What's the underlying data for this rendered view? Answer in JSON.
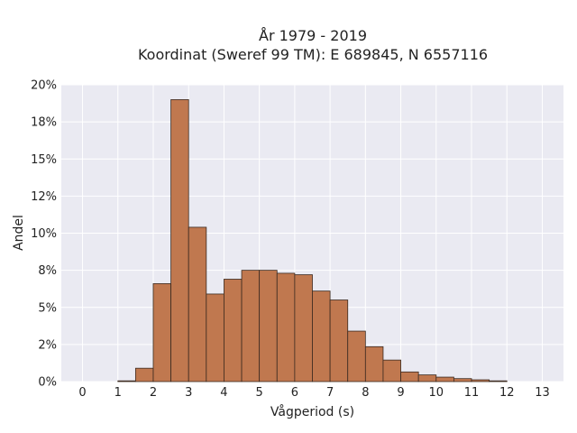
{
  "chart_data": {
    "type": "bar",
    "title_line1": "År 1979 - 2019",
    "title_line2": "Koordinat (Sweref 99 TM): E 689845, N 6557116",
    "xlabel": "Vågperiod (s)",
    "ylabel": "Andel",
    "xlim": [
      -0.6,
      13.6
    ],
    "ylim": [
      0,
      20
    ],
    "x_ticks": [
      0,
      1,
      2,
      3,
      4,
      5,
      6,
      7,
      8,
      9,
      10,
      11,
      12,
      13
    ],
    "y_ticks": [
      {
        "value": 0,
        "label": "0%"
      },
      {
        "value": 2.5,
        "label": "2%"
      },
      {
        "value": 5,
        "label": "5%"
      },
      {
        "value": 7.5,
        "label": "8%"
      },
      {
        "value": 10,
        "label": "10%"
      },
      {
        "value": 12.5,
        "label": "12%"
      },
      {
        "value": 15,
        "label": "15%"
      },
      {
        "value": 17.5,
        "label": "18%"
      },
      {
        "value": 20,
        "label": "20%"
      }
    ],
    "bin_width": 0.5,
    "bins": [
      {
        "start": 1.0,
        "value": 0.05
      },
      {
        "start": 1.5,
        "value": 0.9
      },
      {
        "start": 2.0,
        "value": 6.6
      },
      {
        "start": 2.5,
        "value": 19.0
      },
      {
        "start": 3.0,
        "value": 10.4
      },
      {
        "start": 3.5,
        "value": 5.9
      },
      {
        "start": 4.0,
        "value": 6.9
      },
      {
        "start": 4.5,
        "value": 7.5
      },
      {
        "start": 5.0,
        "value": 7.5
      },
      {
        "start": 5.5,
        "value": 7.3
      },
      {
        "start": 6.0,
        "value": 7.2
      },
      {
        "start": 6.5,
        "value": 6.1
      },
      {
        "start": 7.0,
        "value": 5.5
      },
      {
        "start": 7.5,
        "value": 3.4
      },
      {
        "start": 8.0,
        "value": 2.35
      },
      {
        "start": 8.5,
        "value": 1.45
      },
      {
        "start": 9.0,
        "value": 0.65
      },
      {
        "start": 9.5,
        "value": 0.45
      },
      {
        "start": 10.0,
        "value": 0.3
      },
      {
        "start": 10.5,
        "value": 0.2
      },
      {
        "start": 11.0,
        "value": 0.12
      },
      {
        "start": 11.5,
        "value": 0.05
      }
    ],
    "grid": true,
    "colors": {
      "bar_fill": "#c0784f",
      "bar_edge": "#3b2a20",
      "plot_background": "#eaeaf2",
      "grid": "#ffffff"
    }
  }
}
